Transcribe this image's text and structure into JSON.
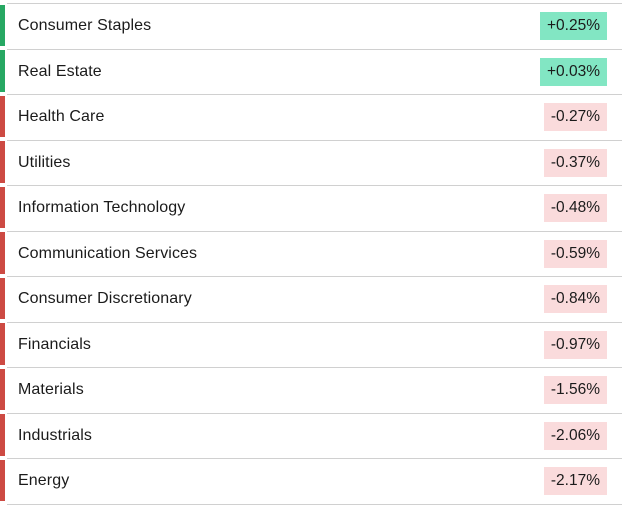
{
  "rows": [
    {
      "name": "Consumer Staples",
      "change": "+0.25%"
    },
    {
      "name": "Real Estate",
      "change": "+0.03%"
    },
    {
      "name": "Health Care",
      "change": "-0.27%"
    },
    {
      "name": "Utilities",
      "change": "-0.37%"
    },
    {
      "name": "Information Technology",
      "change": "-0.48%"
    },
    {
      "name": "Communication Services",
      "change": "-0.59%"
    },
    {
      "name": "Consumer Discretionary",
      "change": "-0.84%"
    },
    {
      "name": "Financials",
      "change": "-0.97%"
    },
    {
      "name": "Materials",
      "change": "-1.56%"
    },
    {
      "name": "Industrials",
      "change": "-2.06%"
    },
    {
      "name": "Energy",
      "change": "-2.17%"
    }
  ],
  "colors": {
    "positive_bar": "#27a863",
    "positive_badge": "#82e6c3",
    "negative_bar": "#cd4a43",
    "negative_badge": "#fadbdc",
    "separator": "#d0d0d0",
    "text": "#1b1b1b"
  },
  "chart_data": {
    "type": "table",
    "title": "",
    "categories": [
      "Consumer Staples",
      "Real Estate",
      "Health Care",
      "Utilities",
      "Information Technology",
      "Communication Services",
      "Consumer Discretionary",
      "Financials",
      "Materials",
      "Industrials",
      "Energy"
    ],
    "values": [
      0.25,
      0.03,
      -0.27,
      -0.37,
      -0.48,
      -0.59,
      -0.84,
      -0.97,
      -1.56,
      -2.06,
      -2.17
    ],
    "value_format": "signed_percent",
    "positive_color": "#27a863",
    "negative_color": "#cd4a43",
    "legend": "none",
    "grid": "horizontal row separators only"
  }
}
